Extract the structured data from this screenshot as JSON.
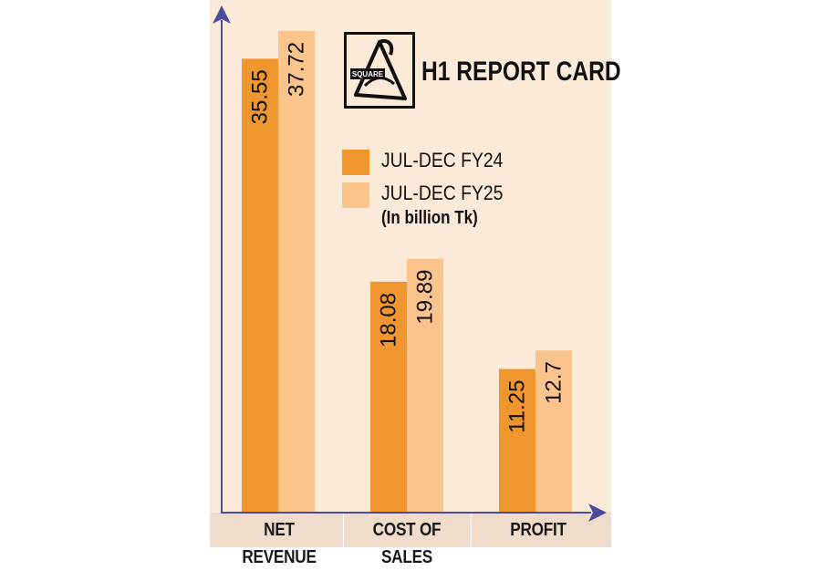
{
  "chart_data": {
    "type": "bar",
    "title": "H1 REPORT CARD",
    "unit_note": "(In billion Tk)",
    "categories": [
      "NET REVENUE",
      "COST OF SALES",
      "PROFIT"
    ],
    "series": [
      {
        "name": "JUL-DEC FY24",
        "values": [
          35.55,
          18.08,
          11.25
        ],
        "color": "#f0962e"
      },
      {
        "name": "JUL-DEC FY25",
        "values": [
          37.72,
          19.89,
          12.7
        ],
        "color": "#fac48c"
      }
    ],
    "value_labels": [
      [
        "35.55",
        "18.08",
        "11.25"
      ],
      [
        "37.72",
        "19.89",
        "12.7"
      ]
    ],
    "xlabel": "",
    "ylabel": "",
    "axis_color": "#4b4ba0"
  },
  "logo": {
    "text": "SQUARE",
    "icon": "square-pharma-logo-icon"
  }
}
